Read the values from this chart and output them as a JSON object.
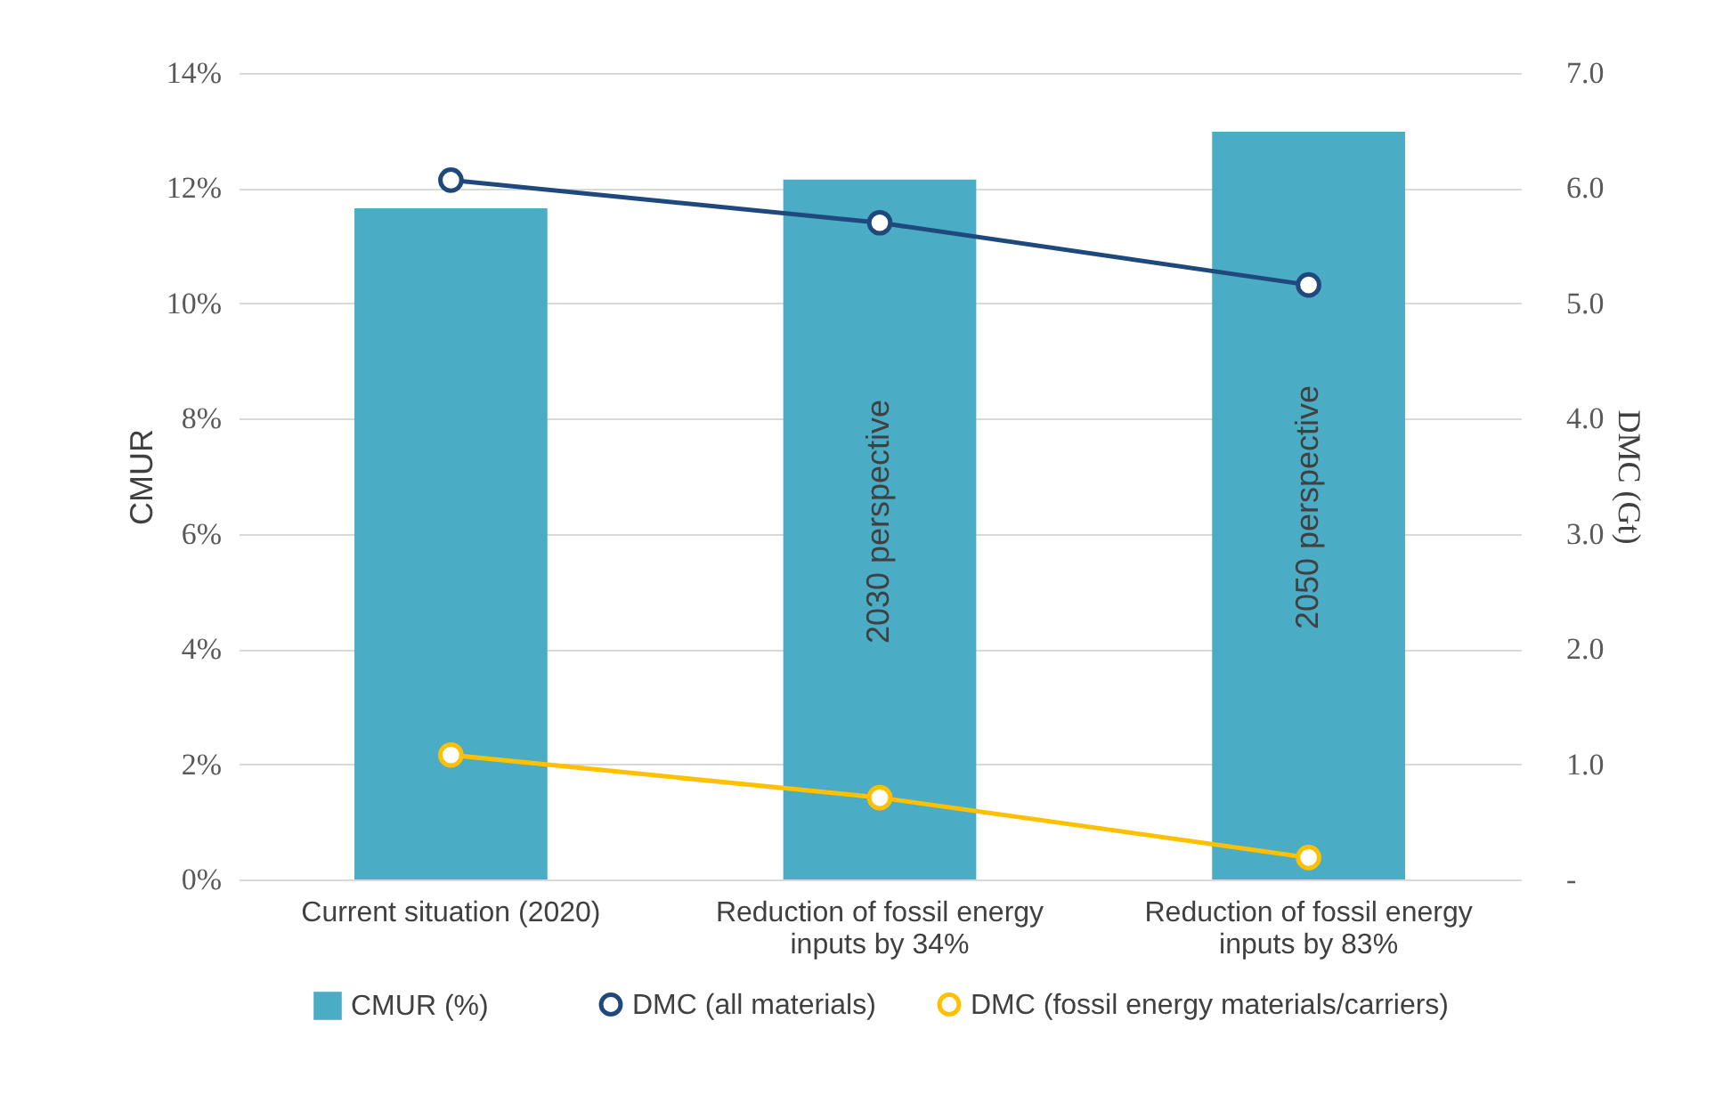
{
  "chart_data": {
    "type": "bar",
    "ylabel": "CMUR",
    "y2label": "DMC (Gt)",
    "categories": [
      "Current situation (2020)",
      "Reduction of fossil energy inputs by 34%",
      "Reduction of fossil energy inputs by 83%"
    ],
    "series": [
      {
        "name": "CMUR (%)",
        "color": "#4bacc6",
        "values": [
          11.65,
          12.15,
          12.98
        ]
      },
      {
        "name": "DMC (all materials)",
        "type": "line",
        "axis": "y2",
        "color": "#1f497d",
        "values": [
          6.07,
          5.7,
          5.16
        ]
      },
      {
        "name": "DMC (fossil energy materials/carriers)",
        "type": "line",
        "axis": "y2",
        "color": "#ffc000",
        "values": [
          1.08,
          0.71,
          0.19
        ]
      }
    ],
    "ylim": [
      0,
      14
    ],
    "yticks": [
      {
        "value": 0,
        "label": "0%"
      },
      {
        "value": 2,
        "label": "2%"
      },
      {
        "value": 4,
        "label": "4%"
      },
      {
        "value": 6,
        "label": "6%"
      },
      {
        "value": 8,
        "label": "8%"
      },
      {
        "value": 10,
        "label": "10%"
      },
      {
        "value": 12,
        "label": "12%"
      },
      {
        "value": 14,
        "label": "14%"
      }
    ],
    "y2lim": [
      0,
      7
    ],
    "y2ticks": [
      {
        "value": 0,
        "label": "-"
      },
      {
        "value": 1,
        "label": "1.0"
      },
      {
        "value": 2,
        "label": "2.0"
      },
      {
        "value": 3,
        "label": "3.0"
      },
      {
        "value": 4,
        "label": "4.0"
      },
      {
        "value": 5,
        "label": "5.0"
      },
      {
        "value": 6,
        "label": "6.0"
      },
      {
        "value": 7,
        "label": "7.0"
      }
    ],
    "annotations": [
      "2030 perspective",
      "2050 perspective"
    ],
    "grid": "y",
    "legend": "bottom",
    "marker": "circle"
  }
}
